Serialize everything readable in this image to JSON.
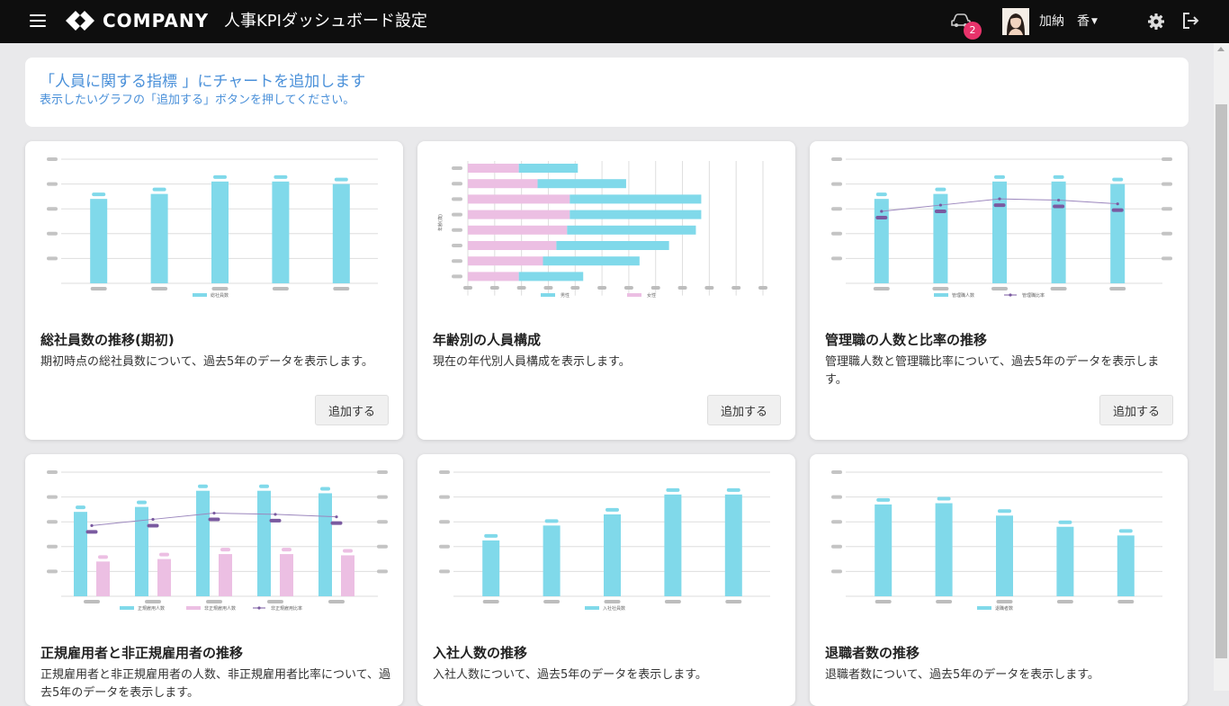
{
  "header": {
    "brand": "COMPANY",
    "title": "人事KPIダッシュボード設定",
    "notification_count": "2",
    "user_name": "加納　香"
  },
  "banner": {
    "title": "「人員に関する指標 」にチャートを追加します",
    "subtitle": "表示したいグラフの「追加する」ボタンを押してください。"
  },
  "colors": {
    "bar_cyan": "#80d9ea",
    "bar_pink": "#ecbfe3",
    "line_purple": "#7a5aa0",
    "placeholder_gray": "#bdbdbd",
    "accent_blue": "#4a90d9",
    "badge_pink": "#e8336b"
  },
  "cards": [
    {
      "title": "総社員数の推移(期初)",
      "description": "期初時点の総社員数について、過去5年のデータを表示します。",
      "button": "追加する",
      "chart_data": {
        "type": "bar",
        "categories": [
          "",
          "",
          "",
          "",
          ""
        ],
        "series": [
          {
            "name": "総社員数",
            "values": [
              68,
              72,
              82,
              82,
              80
            ]
          }
        ],
        "ylim": [
          0,
          100
        ]
      }
    },
    {
      "title": "年齢別の人員構成",
      "description": "現在の年代別人員構成を表示します。",
      "button": "追加する",
      "chart_data": {
        "type": "bar",
        "orientation": "horizontal",
        "stacked": true,
        "ylabel": "年齢(歳)",
        "categories": [
          "",
          "",
          "",
          "",
          "",
          "",
          "",
          ""
        ],
        "series": [
          {
            "name": "女性",
            "values": [
              19,
              26,
              38,
              38,
              37,
              33,
              28,
              19
            ]
          },
          {
            "name": "男性",
            "values": [
              22,
              33,
              49,
              49,
              48,
              42,
              36,
              24
            ]
          }
        ],
        "xlim": [
          0,
          110
        ]
      }
    },
    {
      "title": "管理職の人数と比率の推移",
      "description": "管理職人数と管理職比率について、過去5年のデータを表示します。",
      "button": "追加する",
      "chart_data": {
        "type": "bar",
        "categories": [
          "",
          "",
          "",
          "",
          ""
        ],
        "series": [
          {
            "name": "管理職人数",
            "kind": "bar",
            "values": [
              68,
              72,
              82,
              82,
              80
            ]
          },
          {
            "name": "管理職比率",
            "kind": "line",
            "values": [
              58,
              63,
              68,
              67,
              64
            ]
          }
        ],
        "ylim": [
          0,
          100
        ]
      }
    },
    {
      "title": "正規雇用者と非正規雇用者の推移",
      "description": "正規雇用者と非正規雇用者の人数、非正規雇用者比率について、過去5年のデータを表示します。",
      "chart_data": {
        "type": "bar",
        "categories": [
          "",
          "",
          "",
          "",
          ""
        ],
        "series": [
          {
            "name": "正規雇用人数",
            "kind": "bar",
            "values": [
              68,
              72,
              85,
              85,
              83
            ]
          },
          {
            "name": "非正規雇用人数",
            "kind": "bar",
            "values": [
              28,
              30,
              34,
              34,
              33
            ]
          },
          {
            "name": "非正規雇用比率",
            "kind": "line",
            "values": [
              57,
              62,
              67,
              66,
              64
            ]
          }
        ],
        "ylim": [
          0,
          100
        ]
      }
    },
    {
      "title": "入社人数の推移",
      "description": "入社人数について、過去5年のデータを表示します。",
      "chart_data": {
        "type": "bar",
        "categories": [
          "",
          "",
          "",
          "",
          ""
        ],
        "series": [
          {
            "name": "入社社員数",
            "values": [
              45,
              57,
              66,
              82,
              82
            ]
          }
        ],
        "ylim": [
          0,
          100
        ]
      }
    },
    {
      "title": "退職者数の推移",
      "description": "退職者数について、過去5年のデータを表示します。",
      "chart_data": {
        "type": "bar",
        "categories": [
          "",
          "",
          "",
          "",
          ""
        ],
        "series": [
          {
            "name": "退職者数",
            "values": [
              74,
              75,
              65,
              56,
              49
            ]
          }
        ],
        "ylim": [
          0,
          100
        ]
      }
    }
  ]
}
